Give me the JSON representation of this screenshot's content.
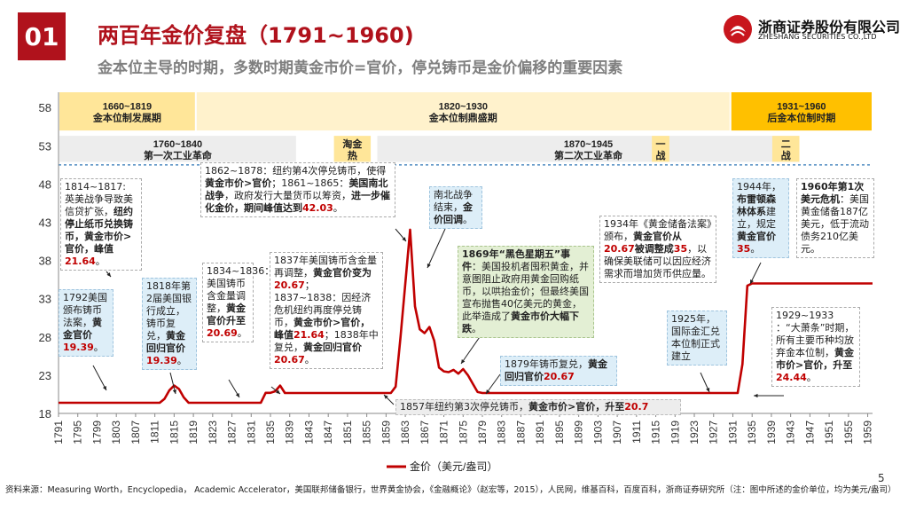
{
  "header": {
    "number": "01",
    "title": "两百年金价复盘（1791~1960)",
    "subtitle": "金本位主导的时期，多数时期黄金市价=官价，停兑铸币是金价偏移的重要因素"
  },
  "logo": {
    "name_cn": "浙商证券股份有限公司",
    "name_en": "ZHESHANG SECURITIES CO.,LTD"
  },
  "page_number": "5",
  "footnote": "资料来源：Measuring Worth，Encyclopedia， Academic Accelerator，美国联邦储备银行，世界黄金协会，《金融概论》（赵宏等，2015），人民网，维基百科，百度百科，浙商证券研究所（注：图中所述的金价单位，均为美元/盎司）",
  "colors": {
    "accent": "#b0121c",
    "series": "#c00000",
    "era_yellow": "#ffe699",
    "era_light_yellow": "#fff2cc",
    "era_orange": "#ffc000",
    "era_grey": "#ededed",
    "dashed_blue": "#2e75b6"
  },
  "chart_data": {
    "type": "line",
    "series": [
      {
        "name": "金价（美元/盎司）",
        "points": [
          [
            1791,
            19.39
          ],
          [
            1812,
            19.39
          ],
          [
            1813,
            19.9
          ],
          [
            1814,
            21.0
          ],
          [
            1815,
            21.64
          ],
          [
            1816,
            21.2
          ],
          [
            1817,
            20.1
          ],
          [
            1818,
            19.39
          ],
          [
            1819,
            19.39
          ],
          [
            1820,
            19.39
          ],
          [
            1833,
            19.39
          ],
          [
            1834,
            20.69
          ],
          [
            1835,
            20.69
          ],
          [
            1836,
            20.9
          ],
          [
            1837,
            21.64
          ],
          [
            1838,
            20.67
          ],
          [
            1839,
            20.67
          ],
          [
            1856,
            20.67
          ],
          [
            1857,
            20.67
          ],
          [
            1858,
            20.67
          ],
          [
            1859,
            20.67
          ],
          [
            1860,
            20.67
          ],
          [
            1861,
            21.5
          ],
          [
            1862,
            28.0
          ],
          [
            1863,
            35.0
          ],
          [
            1864,
            42.03
          ],
          [
            1865,
            32.0
          ],
          [
            1866,
            29.0
          ],
          [
            1867,
            28.5
          ],
          [
            1868,
            29.3
          ],
          [
            1869,
            27.5
          ],
          [
            1870,
            24.0
          ],
          [
            1871,
            23.5
          ],
          [
            1872,
            23.4
          ],
          [
            1873,
            23.7
          ],
          [
            1874,
            23.2
          ],
          [
            1875,
            23.8
          ],
          [
            1876,
            23.0
          ],
          [
            1877,
            21.9
          ],
          [
            1878,
            20.8
          ],
          [
            1879,
            20.67
          ],
          [
            1932,
            20.67
          ],
          [
            1933,
            24.44
          ],
          [
            1934,
            34.69
          ],
          [
            1935,
            35.0
          ],
          [
            1960,
            35.0
          ]
        ]
      }
    ],
    "x_ticks": [
      "1791",
      "1795",
      "1799",
      "1803",
      "1807",
      "1811",
      "1815",
      "1819",
      "1823",
      "1827",
      "1831",
      "1835",
      "1839",
      "1843",
      "1847",
      "1851",
      "1855",
      "1859",
      "1863",
      "1867",
      "1871",
      "1875",
      "1879",
      "1883",
      "1887",
      "1891",
      "1895",
      "1899",
      "1903",
      "1907",
      "1911",
      "1915",
      "1919",
      "1923",
      "1927",
      "1931",
      "1935",
      "1939",
      "1943",
      "1947",
      "1951",
      "1955",
      "1959"
    ],
    "y_ticks": [
      "18",
      "23",
      "28",
      "33",
      "38",
      "43",
      "48",
      "53",
      "58"
    ],
    "xlim": [
      1791,
      1960
    ],
    "ylim": [
      18,
      60
    ],
    "reference_lines": [
      50.5
    ],
    "legend": {
      "label": "金价（美元/盎司）",
      "position": "bottom"
    },
    "eras_row1": [
      {
        "label": "1660~1819 金本位制发展期",
        "from": 1791,
        "to": 1819.5,
        "color": "#ffe699"
      },
      {
        "label": "1820~1930 金本位制鼎盛期",
        "from": 1819.5,
        "to": 1930.5,
        "color": "#fff2cc"
      },
      {
        "label": "1931~1960 后金本位制时期",
        "from": 1930.5,
        "to": 1960,
        "color": "#ffc000"
      }
    ],
    "eras_row2": [
      {
        "label": "1760~1840 第一次工业革命",
        "from": 1791,
        "to": 1840.5,
        "color": "#ededed"
      },
      {
        "label": "淘金热",
        "from": 1848,
        "to": 1856,
        "color": "#ffe699"
      },
      {
        "label": "1870~1945 第二次工业革命",
        "from": 1857,
        "to": 1945,
        "color": "#ededed"
      },
      {
        "label": "一战",
        "from": 1914,
        "to": 1918,
        "color": "#ffe699"
      },
      {
        "label": "二战",
        "from": 1939,
        "to": 1945,
        "color": "#ffe699"
      }
    ]
  },
  "annotations": {
    "a1814": {
      "lead": "1814~1817:",
      "line1": "英美战争导致美信贷扩张，",
      "bold": "纽约停止纸币兑换铸币，黄金市价>官价，峰值",
      "value": "21.64",
      "tail": "。"
    },
    "a1792": {
      "text": "1792美国颁布铸币法案，",
      "bold": "黄金官价",
      "value": "19.39",
      "tail": "。"
    },
    "a1818": {
      "text": "1818年第2届美国银行成立，铸币复兑，",
      "bold": "黄金回归官价",
      "value": "19.39",
      "tail": "。"
    },
    "a1862": {
      "line1": "1862~1878：纽约第4次停兑铸币，使得",
      "bold1": "黄金市价>官价",
      "line2": "；1861~1865：",
      "bold2": "美国南北战争",
      "line3": "，政府发行大量货币以筹资，",
      "bold3": "进一步催化金价，期间峰值达到",
      "value": "42.03",
      "tail": "。"
    },
    "a1834": {
      "text": "1834~1836：美国铸币含金量调整，",
      "bold": "黄金官价升至",
      "value": "20.69",
      "tail": "。"
    },
    "a1837": {
      "line1": "1837年美国铸币含金量再调整，",
      "bold1": "黄金官价变为",
      "value1": "20.67",
      "line2": "；1837~1838：因经济危机纽约再度停兑铸币，",
      "bold2": "黄金市价>官价，峰值",
      "value2": "21.64",
      "line3": "；1838年中复兑，",
      "bold3": "黄金回归官价",
      "value3": "20.67",
      "tail": "。"
    },
    "a1857": {
      "text": "1857年纽约第3次停兑铸币，",
      "bold": "黄金市价>官价，升至",
      "value": "20.7"
    },
    "a_civil": {
      "text": "南北战争结束，",
      "bold": "金价回调",
      "tail": "。"
    },
    "a1869": {
      "bold1": "1869年“黑色星期五”事件",
      "text": "：美国投机者囤积黄金，并意图阻止政府用黄金回购纸币，以哄抬金价；但最终美国宣布抛售40亿美元的黄金，此举造成了",
      "bold2": "黄金市价大幅下跌",
      "tail": "。"
    },
    "a1879": {
      "text": "1879年铸币复兑，",
      "bold": "黄金回归官价",
      "value": "20.67"
    },
    "a1934": {
      "line1": "1934年《黄金储备法案》颁布，",
      "bold": "黄金官价从",
      "value1": "20.67",
      "mid": "被调整成",
      "value2": "35",
      "line2": "，以确保美联储可以因应经济需求而增加货币供应量。"
    },
    "a1925": {
      "text": "1925年，国际金汇兑本位制正式建立"
    },
    "a1944": {
      "line1": "1944年，",
      "bold1": "布雷顿森林体系",
      "line2": "建立，规定",
      "bold2": "黄金官价",
      "value": "35",
      "tail": "。"
    },
    "a1960": {
      "bold": "1960年第1次美元危机",
      "text": "：美国黄金储备187亿美元，低于流动债务210亿美元。"
    },
    "a1929": {
      "line1": "1929~1933 ：“大萧条”时期，所有主要币种均放弃金本位制，",
      "bold": "黄金市价>官价，升至",
      "value": "24.44",
      "tail": "。"
    }
  }
}
